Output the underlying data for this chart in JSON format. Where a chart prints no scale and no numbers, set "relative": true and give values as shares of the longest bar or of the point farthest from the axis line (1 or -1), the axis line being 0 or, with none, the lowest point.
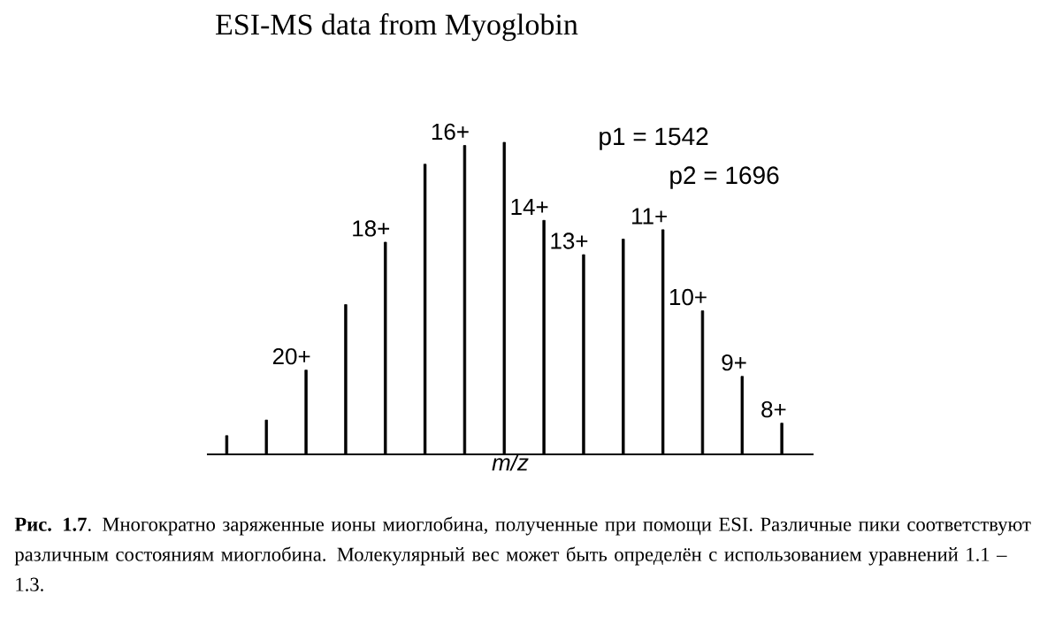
{
  "chart_data": {
    "type": "bar",
    "title": "ESI-MS data from Myoglobin",
    "xlabel": "m/z",
    "relative": true,
    "color": "#000000",
    "categories": [
      null,
      null,
      "20+",
      null,
      "18+",
      null,
      "16+",
      null,
      "14+",
      "13+",
      null,
      "11+",
      "10+",
      "9+",
      "8+"
    ],
    "values": [
      0.06,
      0.11,
      0.27,
      0.48,
      0.68,
      0.93,
      0.99,
      1,
      0.75,
      0.64,
      0.69,
      0.72,
      0.46,
      0.25,
      0.1
    ],
    "annotations": [
      "p1 = 1542",
      "p2 = 1696",
      "**Рис. 1.7**. Многократно заряженные ионы миоглобина, полученные при помощи ESI. Различные пики соответствуют различным состояниям миоглобина. Молекулярный вес может быть определён с использованием уравнений 1.1 – 1.3."
    ]
  }
}
